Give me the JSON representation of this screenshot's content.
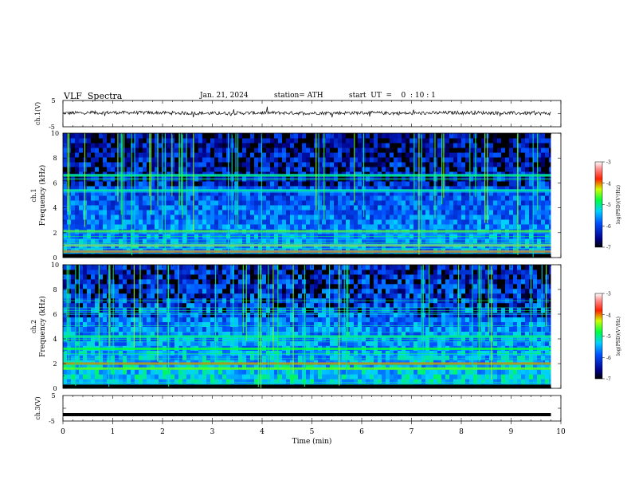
{
  "header": {
    "title": "VLF  Spectra",
    "date": "Jan. 21, 2024",
    "station": "station= ATH",
    "start_ut": "start  UT  =    0  : 10 : 1"
  },
  "chart_data": [
    {
      "type": "line",
      "panel": "ch1-waveform",
      "ylabel": "ch.1(V)",
      "ylim": [
        -5,
        5
      ],
      "yticks": [
        "5",
        "-5"
      ],
      "description_values_note": "noisy trace around 0 V",
      "x": [
        0,
        1,
        2,
        3,
        4,
        5,
        6,
        7,
        8,
        9,
        9.8
      ],
      "values": [
        0.2,
        0.4,
        0.3,
        0.1,
        0.3,
        0.2,
        0.3,
        0.1,
        0.4,
        0.2,
        0.1
      ]
    },
    {
      "type": "heatmap",
      "panel": "ch1-spectrogram",
      "ylabel": "ch.1\nFrequency  (kHz)",
      "ylim": [
        0,
        10
      ],
      "yticks": [
        "0",
        "2",
        "4",
        "6",
        "8",
        "10"
      ],
      "xlim": [
        0,
        10
      ],
      "colorbar": {
        "label": "log(PSD)(V²/Hz)",
        "range": [
          -7,
          -3
        ],
        "ticks": [
          "-3",
          "-4",
          "-5",
          "-6",
          "-7"
        ]
      },
      "bands_khz": [
        {
          "f": 2.1,
          "level": -4.6
        },
        {
          "f": 1.0,
          "level": -4.3
        },
        {
          "f": 0.5,
          "level": -4.0
        },
        {
          "f": 6.6,
          "level": -5.0
        },
        {
          "f": 5.4,
          "level": -5.2
        }
      ]
    },
    {
      "type": "heatmap",
      "panel": "ch2-spectrogram",
      "ylabel": "ch.2\nFrequency  (kHz)",
      "ylim": [
        0,
        10
      ],
      "yticks": [
        "0",
        "2",
        "4",
        "6",
        "8",
        "10"
      ],
      "xlim": [
        0,
        10
      ],
      "colorbar": {
        "label": "log(PSD)(V²/Hz)",
        "range": [
          -7,
          -3
        ],
        "ticks": [
          "-3",
          "-4",
          "-5",
          "-6",
          "-7"
        ]
      },
      "bands_khz": [
        {
          "f": 2.0,
          "level": -4.0
        },
        {
          "f": 1.6,
          "level": -4.6
        },
        {
          "f": 3.2,
          "level": -4.8
        },
        {
          "f": 4.2,
          "level": -5.0
        }
      ]
    },
    {
      "type": "line",
      "panel": "ch3-waveform",
      "ylabel": "ch.3(V)",
      "ylim": [
        -5,
        5
      ],
      "yticks": [
        "5",
        "-5"
      ],
      "x": [
        0,
        9.8
      ],
      "values": [
        -2.5,
        -2.5
      ]
    }
  ],
  "xaxis": {
    "label": "Time  (min)",
    "ticks": [
      "0",
      "1",
      "2",
      "3",
      "4",
      "5",
      "6",
      "7",
      "8",
      "9",
      "10"
    ],
    "range": [
      0,
      10
    ]
  }
}
